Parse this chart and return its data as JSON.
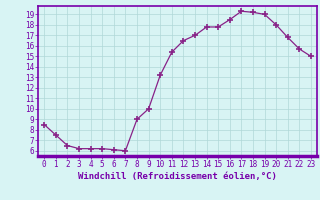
{
  "x": [
    0,
    1,
    2,
    3,
    4,
    5,
    6,
    7,
    8,
    9,
    10,
    11,
    12,
    13,
    14,
    15,
    16,
    17,
    18,
    19,
    20,
    21,
    22,
    23
  ],
  "y": [
    8.5,
    7.5,
    6.5,
    6.2,
    6.2,
    6.2,
    6.1,
    6.0,
    9.0,
    10.0,
    13.2,
    15.4,
    16.5,
    17.0,
    17.8,
    17.8,
    18.5,
    19.3,
    19.2,
    19.0,
    18.0,
    16.8,
    15.7,
    15.0
  ],
  "line_color": "#882288",
  "marker": "+",
  "markersize": 4,
  "markeredgewidth": 1.2,
  "linewidth": 0.9,
  "bg_color": "#d8f4f4",
  "grid_color": "#b0d8d8",
  "xlabel": "Windchill (Refroidissement éolien,°C)",
  "xlim": [
    -0.5,
    23.5
  ],
  "ylim": [
    5.5,
    19.8
  ],
  "yticks": [
    6,
    7,
    8,
    9,
    10,
    11,
    12,
    13,
    14,
    15,
    16,
    17,
    18,
    19
  ],
  "xticks": [
    0,
    1,
    2,
    3,
    4,
    5,
    6,
    7,
    8,
    9,
    10,
    11,
    12,
    13,
    14,
    15,
    16,
    17,
    18,
    19,
    20,
    21,
    22,
    23
  ],
  "tick_label_size": 5.5,
  "xlabel_size": 6.5,
  "border_color": "#7700aa",
  "spine_color": "#7700aa"
}
